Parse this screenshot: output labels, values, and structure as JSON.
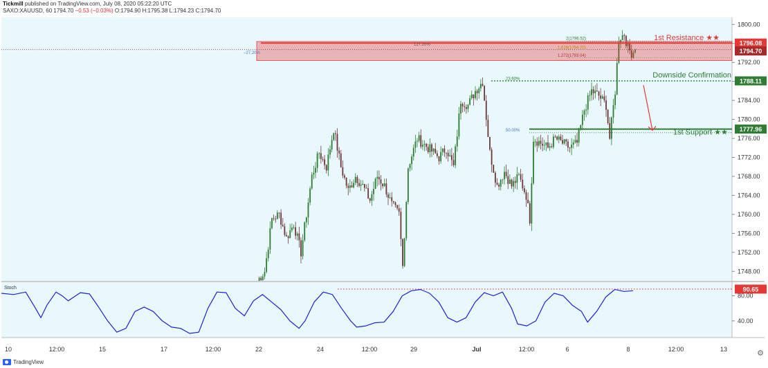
{
  "header": {
    "author": "Tickmill",
    "published": "published on TradingView.com, July 08, 2020 05:22:20 UTC",
    "symbol": "SAXO:XAUUSD, 60",
    "last": "1794.70",
    "change": "−0.53 (−0.03%)",
    "ohlc": "O:1794.90 H:1795.38 L:1794.23 C:1794.70"
  },
  "footer": {
    "brand": "TradingView"
  },
  "colors": {
    "plot_bg": "#e9f8fd",
    "candle_up": "#2e7d32",
    "candle_down": "#6d3737",
    "resistance": "#e53935",
    "support": "#2e7d32",
    "stoch": "#1f1fd6",
    "current_price": "#a52a2a"
  },
  "chart_data": [
    {
      "type": "candlestick",
      "price_axis": {
        "min": 1746,
        "max": 1801.5,
        "ticks": [
          "1800.00",
          "1796.00",
          "1792.00",
          "1788.00",
          "1784.00",
          "1780.00",
          "1776.00",
          "1772.00",
          "1768.00",
          "1764.00",
          "1760.00",
          "1756.00",
          "1752.00",
          "1748.00"
        ],
        "tick_values": [
          1800,
          1796,
          1792,
          1788,
          1784,
          1780,
          1776,
          1772,
          1768,
          1764,
          1760,
          1756,
          1752,
          1748
        ]
      },
      "time_axis": {
        "labels": [
          "10",
          "12:00",
          "15",
          "17",
          "12:00",
          "22",
          "24",
          "12:00",
          "29",
          "Jul",
          "12:00",
          "6",
          "8",
          "12:00",
          "13"
        ],
        "bold": [
          "Jul"
        ]
      },
      "anchors": [
        {
          "i": 0,
          "p": 1746
        },
        {
          "i": 4,
          "p": 1748
        },
        {
          "i": 8,
          "p": 1759
        },
        {
          "i": 12,
          "p": 1760
        },
        {
          "i": 16,
          "p": 1755
        },
        {
          "i": 20,
          "p": 1758
        },
        {
          "i": 24,
          "p": 1752
        },
        {
          "i": 30,
          "p": 1768
        },
        {
          "i": 34,
          "p": 1773
        },
        {
          "i": 38,
          "p": 1770
        },
        {
          "i": 42,
          "p": 1778
        },
        {
          "i": 46,
          "p": 1770
        },
        {
          "i": 50,
          "p": 1765
        },
        {
          "i": 54,
          "p": 1768
        },
        {
          "i": 58,
          "p": 1766
        },
        {
          "i": 62,
          "p": 1763
        },
        {
          "i": 66,
          "p": 1768
        },
        {
          "i": 70,
          "p": 1766
        },
        {
          "i": 74,
          "p": 1762
        },
        {
          "i": 78,
          "p": 1760
        },
        {
          "i": 80,
          "p": 1749
        },
        {
          "i": 83,
          "p": 1770
        },
        {
          "i": 88,
          "p": 1776
        },
        {
          "i": 94,
          "p": 1774
        },
        {
          "i": 100,
          "p": 1772
        },
        {
          "i": 104,
          "p": 1774
        },
        {
          "i": 108,
          "p": 1770
        },
        {
          "i": 112,
          "p": 1784
        },
        {
          "i": 116,
          "p": 1783
        },
        {
          "i": 120,
          "p": 1786
        },
        {
          "i": 124,
          "p": 1788
        },
        {
          "i": 128,
          "p": 1773
        },
        {
          "i": 132,
          "p": 1766
        },
        {
          "i": 136,
          "p": 1769
        },
        {
          "i": 140,
          "p": 1766
        },
        {
          "i": 144,
          "p": 1768
        },
        {
          "i": 148,
          "p": 1764
        },
        {
          "i": 150,
          "p": 1759
        },
        {
          "i": 152,
          "p": 1776
        },
        {
          "i": 156,
          "p": 1775
        },
        {
          "i": 160,
          "p": 1774
        },
        {
          "i": 164,
          "p": 1776
        },
        {
          "i": 168,
          "p": 1775
        },
        {
          "i": 172,
          "p": 1774
        },
        {
          "i": 176,
          "p": 1775
        },
        {
          "i": 180,
          "p": 1782
        },
        {
          "i": 184,
          "p": 1786
        },
        {
          "i": 188,
          "p": 1785
        },
        {
          "i": 192,
          "p": 1783
        },
        {
          "i": 194,
          "p": 1776
        },
        {
          "i": 197,
          "p": 1786
        },
        {
          "i": 199,
          "p": 1797
        },
        {
          "i": 202,
          "p": 1798
        },
        {
          "i": 204,
          "p": 1795
        },
        {
          "i": 206,
          "p": 1794
        },
        {
          "i": 208,
          "p": 1794.7
        }
      ],
      "levels": {
        "resistance": {
          "label": "1st Resistance ★★",
          "price": "1796.08",
          "value": 1796.08
        },
        "current": {
          "price": "1794.70",
          "value": 1794.7
        },
        "downside": {
          "label": "Downside Confirmation",
          "price": "1788.11",
          "value": 1788.11
        },
        "support": {
          "label": "1st Support ★★",
          "price": "1777.96",
          "value": 1777.96
        },
        "zone": {
          "top": 1796.4,
          "bottom": 1792.4
        }
      },
      "fib_labels": {
        "fib_127": "127.20%",
        "fib_m27": "−27.20%",
        "fib_1796": "2(1796.52)",
        "fib_1794": "1.618(1794.70)",
        "fib_1793": "1.272(1793.04)",
        "fib_23": "23.60%",
        "fib_50": "50.00%"
      }
    },
    {
      "type": "line",
      "title": "Stoch",
      "y_axis": {
        "min": 20,
        "max": 95,
        "ticks": [
          "80.00",
          "40.00"
        ],
        "tick_values": [
          80,
          40
        ]
      },
      "marker": {
        "price": "90.65",
        "value": 90.65
      },
      "points": [
        [
          0,
          84
        ],
        [
          4,
          82
        ],
        [
          8,
          86
        ],
        [
          11,
          62
        ],
        [
          13,
          45
        ],
        [
          15,
          65
        ],
        [
          18,
          86
        ],
        [
          20,
          80
        ],
        [
          22,
          72
        ],
        [
          26,
          85
        ],
        [
          29,
          83
        ],
        [
          32,
          62
        ],
        [
          35,
          40
        ],
        [
          38,
          22
        ],
        [
          41,
          28
        ],
        [
          44,
          55
        ],
        [
          47,
          62
        ],
        [
          50,
          55
        ],
        [
          53,
          40
        ],
        [
          56,
          30
        ],
        [
          59,
          28
        ],
        [
          62,
          20
        ],
        [
          65,
          22
        ],
        [
          68,
          60
        ],
        [
          71,
          86
        ],
        [
          74,
          85
        ],
        [
          77,
          60
        ],
        [
          80,
          48
        ],
        [
          83,
          72
        ],
        [
          86,
          82
        ],
        [
          89,
          70
        ],
        [
          92,
          58
        ],
        [
          95,
          40
        ],
        [
          98,
          28
        ],
        [
          100,
          40
        ],
        [
          103,
          70
        ],
        [
          106,
          86
        ],
        [
          109,
          82
        ],
        [
          112,
          60
        ],
        [
          115,
          40
        ],
        [
          117,
          30
        ],
        [
          120,
          32
        ],
        [
          123,
          37
        ],
        [
          126,
          38
        ],
        [
          129,
          55
        ],
        [
          132,
          80
        ],
        [
          135,
          88
        ],
        [
          138,
          90
        ],
        [
          141,
          84
        ],
        [
          144,
          70
        ],
        [
          147,
          45
        ],
        [
          150,
          38
        ],
        [
          153,
          45
        ],
        [
          156,
          70
        ],
        [
          159,
          85
        ],
        [
          162,
          80
        ],
        [
          165,
          86
        ],
        [
          168,
          60
        ],
        [
          170,
          35
        ],
        [
          173,
          32
        ],
        [
          176,
          40
        ],
        [
          179,
          70
        ],
        [
          182,
          84
        ],
        [
          185,
          80
        ],
        [
          188,
          65
        ],
        [
          191,
          55
        ],
        [
          193,
          38
        ],
        [
          196,
          55
        ],
        [
          199,
          78
        ],
        [
          202,
          90
        ],
        [
          205,
          87
        ],
        [
          208,
          88
        ]
      ]
    }
  ]
}
